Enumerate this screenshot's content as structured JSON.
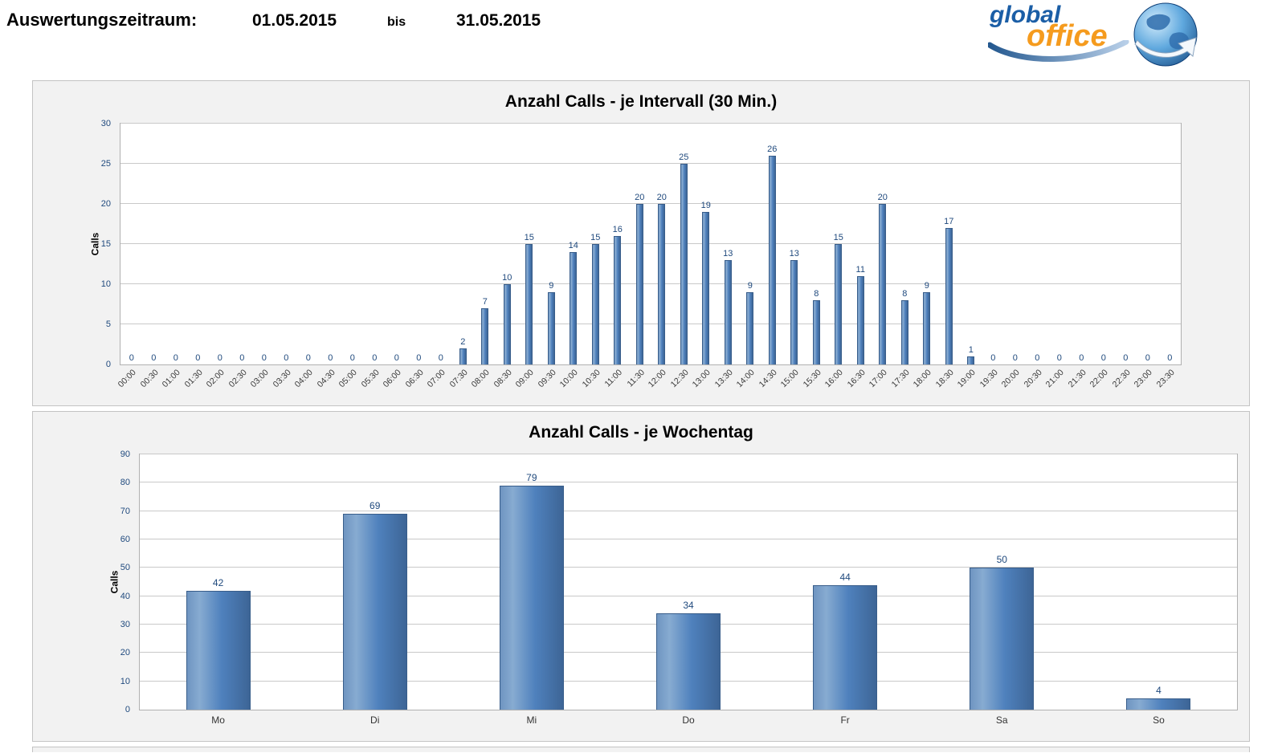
{
  "header": {
    "period_label": "Auswertungszeitraum:",
    "date_from": "01.05.2015",
    "bis_label": "bis",
    "date_to": "31.05.2015"
  },
  "logo": {
    "line1": "global",
    "line2": "office"
  },
  "colors": {
    "bar": "#4f81bd",
    "bar_border": "#385d8a",
    "value_label": "#1f497d",
    "axis_tick": "#1f497d",
    "panel_background": "#f2f2f2"
  },
  "chart_data": [
    {
      "type": "bar",
      "title": "Anzahl Calls -  je Intervall (30 Min.)",
      "xlabel": "",
      "ylabel": "Calls",
      "ylim": [
        0,
        30
      ],
      "yticks": [
        0,
        5,
        10,
        15,
        20,
        25,
        30
      ],
      "grid": true,
      "legend": "none",
      "x_label_rotation": 45,
      "categories": [
        "00:00",
        "00:30",
        "01:00",
        "01:30",
        "02:00",
        "02:30",
        "03:00",
        "03:30",
        "04:00",
        "04:30",
        "05:00",
        "05:30",
        "06:00",
        "06:30",
        "07:00",
        "07:30",
        "08:00",
        "08:30",
        "09:00",
        "09:30",
        "10:00",
        "10:30",
        "11:00",
        "11:30",
        "12:00",
        "12:30",
        "13:00",
        "13:30",
        "14:00",
        "14:30",
        "15:00",
        "15:30",
        "16:00",
        "16:30",
        "17:00",
        "17:30",
        "18:00",
        "18:30",
        "19:00",
        "19:30",
        "20:00",
        "20:30",
        "21:00",
        "21:30",
        "22:00",
        "22:30",
        "23:00",
        "23:30"
      ],
      "values": [
        0,
        0,
        0,
        0,
        0,
        0,
        0,
        0,
        0,
        0,
        0,
        0,
        0,
        0,
        0,
        2,
        7,
        10,
        15,
        9,
        14,
        15,
        16,
        20,
        20,
        25,
        19,
        13,
        9,
        26,
        13,
        8,
        15,
        11,
        20,
        8,
        9,
        17,
        1,
        0,
        0,
        0,
        0,
        0,
        0,
        0,
        0,
        0
      ]
    },
    {
      "type": "bar",
      "title": "Anzahl Calls  - je Wochentag",
      "xlabel": "",
      "ylabel": "Calls",
      "ylim": [
        0,
        90
      ],
      "yticks": [
        0,
        10,
        20,
        30,
        40,
        50,
        60,
        70,
        80,
        90
      ],
      "grid": true,
      "legend": "none",
      "x_label_rotation": 0,
      "categories": [
        "Mo",
        "Di",
        "Mi",
        "Do",
        "Fr",
        "Sa",
        "So"
      ],
      "values": [
        42,
        69,
        79,
        34,
        44,
        50,
        4
      ]
    }
  ]
}
